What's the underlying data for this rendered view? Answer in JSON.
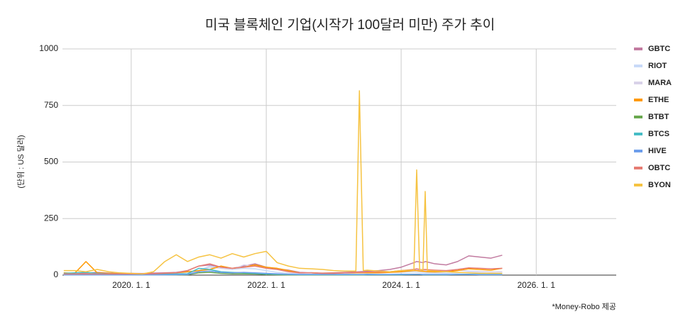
{
  "chart_data": {
    "type": "line",
    "title": "미국 블록체인 기업(시작가 100달러 미만) 주가 추이",
    "y_label": "(단위 : US 달러)",
    "note": "*Money-Robo 제공",
    "x": [
      "2019-01-01",
      "2019-03-01",
      "2019-05-01",
      "2019-07-01",
      "2019-09-01",
      "2019-11-01",
      "2020-01-01",
      "2020-03-01",
      "2020-05-01",
      "2020-07-01",
      "2020-09-01",
      "2020-11-01",
      "2021-01-01",
      "2021-03-01",
      "2021-05-01",
      "2021-07-01",
      "2021-09-01",
      "2021-11-01",
      "2022-01-01",
      "2022-03-01",
      "2022-05-01",
      "2022-07-01",
      "2022-09-01",
      "2022-11-01",
      "2023-01-01",
      "2023-03-01",
      "2023-05-01",
      "2023-05-20",
      "2023-06-10",
      "2023-07-01",
      "2023-09-01",
      "2023-11-01",
      "2024-01-01",
      "2024-03-10",
      "2024-03-25",
      "2024-04-10",
      "2024-04-28",
      "2024-05-10",
      "2024-05-22",
      "2024-07-01",
      "2024-09-01",
      "2024-11-01",
      "2025-01-01",
      "2025-03-01",
      "2025-05-01",
      "2025-07-01"
    ],
    "xlim": [
      "2018-12-25",
      "2027-03-10"
    ],
    "xticks": [
      {
        "value": "2020-01-01",
        "label": "2020. 1. 1"
      },
      {
        "value": "2022-01-01",
        "label": "2022. 1. 1"
      },
      {
        "value": "2024-01-01",
        "label": "2024. 1. 1"
      },
      {
        "value": "2026-01-01",
        "label": "2026. 1. 1"
      }
    ],
    "ylim": [
      0,
      1000
    ],
    "yticks": [
      0,
      250,
      500,
      750,
      1000
    ],
    "grid": true,
    "legend": "right",
    "series": [
      {
        "name": "GBTC",
        "color": "#c27ba0",
        "values": [
          6,
          5,
          9,
          12,
          9,
          7,
          8,
          7,
          9,
          10,
          12,
          20,
          40,
          45,
          35,
          30,
          40,
          50,
          35,
          28,
          22,
          12,
          10,
          9,
          10,
          12,
          14,
          15,
          16,
          18,
          20,
          25,
          35,
          55,
          60,
          58,
          55,
          60,
          58,
          50,
          45,
          60,
          85,
          80,
          75,
          88
        ]
      },
      {
        "name": "RIOT",
        "color": "#c9daf8",
        "values": [
          2,
          3,
          3,
          2,
          2,
          2,
          2,
          2,
          2,
          4,
          8,
          12,
          20,
          40,
          30,
          25,
          30,
          28,
          20,
          12,
          8,
          5,
          4,
          4,
          6,
          8,
          10,
          10,
          11,
          12,
          10,
          12,
          12,
          14,
          13,
          12,
          11,
          10,
          10,
          10,
          9,
          10,
          12,
          10,
          8,
          9
        ]
      },
      {
        "name": "MARA",
        "color": "#d9d2e9",
        "values": [
          1,
          1,
          1,
          1,
          1,
          1,
          1,
          1,
          1,
          2,
          2,
          5,
          20,
          35,
          30,
          25,
          45,
          40,
          30,
          25,
          15,
          8,
          12,
          5,
          4,
          6,
          10,
          10,
          12,
          12,
          10,
          15,
          20,
          22,
          24,
          22,
          20,
          21,
          20,
          18,
          17,
          22,
          18,
          16,
          14,
          15
        ]
      },
      {
        "name": "ETHE",
        "color": "#ff9900",
        "values": [
          10,
          8,
          60,
          10,
          8,
          6,
          5,
          4,
          5,
          8,
          10,
          15,
          20,
          25,
          40,
          30,
          35,
          45,
          35,
          30,
          20,
          10,
          10,
          8,
          8,
          10,
          10,
          10,
          10,
          10,
          10,
          12,
          15,
          20,
          20,
          18,
          17,
          16,
          15,
          14,
          15,
          20,
          28,
          25,
          22,
          30
        ]
      },
      {
        "name": "BTBT",
        "color": "#6aa84f",
        "values": [
          2,
          2,
          2,
          2,
          1,
          1,
          1,
          1,
          1,
          1,
          1,
          2,
          10,
          12,
          8,
          6,
          6,
          5,
          3,
          2,
          1,
          1,
          1,
          1,
          1,
          1,
          1,
          1,
          1,
          2,
          2,
          2,
          2,
          3,
          3,
          3,
          2,
          2,
          2,
          2,
          2,
          3,
          3,
          2,
          2,
          2
        ]
      },
      {
        "name": "BTCS",
        "color": "#46bdc6",
        "values": [
          8,
          10,
          12,
          8,
          6,
          5,
          4,
          3,
          3,
          4,
          5,
          6,
          30,
          25,
          15,
          12,
          10,
          8,
          5,
          4,
          3,
          2,
          2,
          2,
          2,
          2,
          2,
          2,
          2,
          2,
          2,
          2,
          2,
          3,
          3,
          3,
          2,
          2,
          2,
          2,
          2,
          3,
          4,
          3,
          3,
          3
        ]
      },
      {
        "name": "HIVE",
        "color": "#6d9eeb",
        "values": [
          1,
          1,
          1,
          1,
          1,
          1,
          1,
          1,
          1,
          1,
          2,
          3,
          15,
          18,
          12,
          10,
          12,
          10,
          8,
          6,
          4,
          3,
          3,
          3,
          3,
          3,
          3,
          3,
          3,
          4,
          3,
          3,
          4,
          4,
          4,
          4,
          3,
          3,
          3,
          3,
          3,
          3,
          3,
          2,
          2,
          2
        ]
      },
      {
        "name": "OBTC",
        "color": "#e67c73",
        "values": [
          5,
          5,
          5,
          5,
          5,
          5,
          5,
          5,
          6,
          8,
          10,
          20,
          40,
          50,
          35,
          30,
          35,
          40,
          30,
          25,
          15,
          10,
          10,
          8,
          8,
          10,
          12,
          12,
          12,
          14,
          14,
          15,
          20,
          25,
          28,
          25,
          24,
          25,
          24,
          22,
          20,
          25,
          32,
          30,
          28,
          30
        ]
      },
      {
        "name": "BYON",
        "color": "#f6c342",
        "values": [
          20,
          20,
          15,
          25,
          15,
          10,
          8,
          5,
          15,
          60,
          90,
          60,
          80,
          90,
          75,
          95,
          80,
          95,
          105,
          55,
          40,
          30,
          28,
          25,
          20,
          18,
          18,
          815,
          20,
          22,
          18,
          15,
          20,
          22,
          465,
          25,
          22,
          370,
          20,
          18,
          15,
          12,
          10,
          8,
          8,
          8
        ]
      }
    ]
  }
}
